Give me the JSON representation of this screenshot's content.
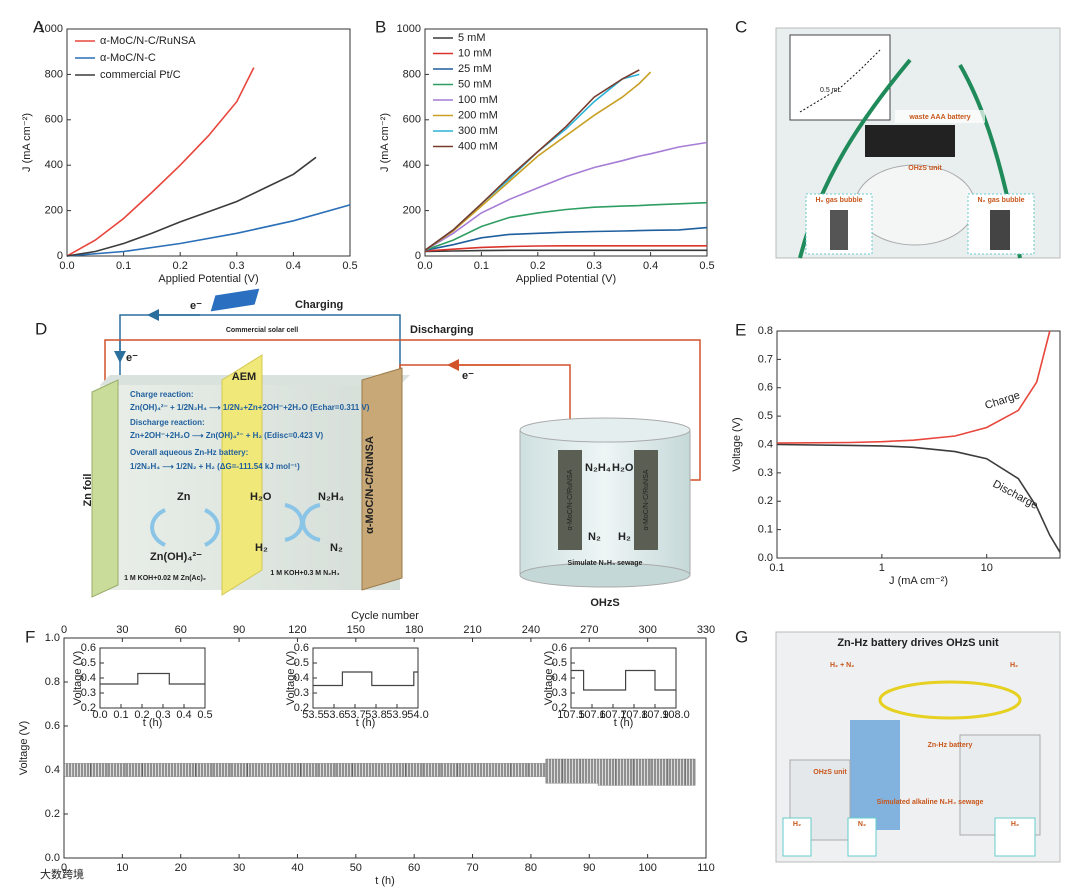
{
  "chart_data": [
    {
      "type": "line",
      "panel": "A",
      "xlabel": "Applied Potential (V)",
      "ylabel": "J (mA cm⁻²)",
      "xlim": [
        0,
        0.5
      ],
      "ylim": [
        0,
        1000
      ],
      "xticks": [
        {
          "value": 0,
          "label": "0.0"
        },
        0.1,
        0.2,
        0.3,
        0.4,
        0.5
      ],
      "yticks": [
        0,
        200,
        400,
        600,
        800,
        1000
      ],
      "legend": "upper left",
      "series": [
        {
          "name": "α-MoC/N-C/RuNSA",
          "color": "#e8463c",
          "x": [
            0,
            0.05,
            0.1,
            0.15,
            0.2,
            0.25,
            0.3,
            0.33
          ],
          "values": [
            0,
            70,
            165,
            280,
            400,
            530,
            680,
            830
          ]
        },
        {
          "name": "α-MoC/N-C",
          "color": "#2a6fb8",
          "x": [
            0,
            0.1,
            0.2,
            0.3,
            0.4,
            0.5
          ],
          "values": [
            0,
            20,
            55,
            100,
            155,
            225
          ]
        },
        {
          "name": "commercial Pt/C",
          "color": "#3c3c3c",
          "x": [
            0,
            0.05,
            0.1,
            0.15,
            0.2,
            0.25,
            0.3,
            0.35,
            0.4,
            0.44
          ],
          "values": [
            0,
            20,
            55,
            100,
            150,
            195,
            240,
            300,
            360,
            435
          ]
        }
      ]
    },
    {
      "type": "line",
      "panel": "B",
      "xlabel": "Applied Potential (V)",
      "ylabel": "J (mA cm⁻²)",
      "xlim": [
        0,
        0.5
      ],
      "ylim": [
        0,
        1000
      ],
      "xticks": [
        {
          "value": 0,
          "label": "0.0"
        },
        0.1,
        0.2,
        0.3,
        0.4,
        0.5
      ],
      "yticks": [
        0,
        200,
        400,
        600,
        800,
        1000
      ],
      "legend": "upper left",
      "x": [
        0,
        0.05,
        0.1,
        0.15,
        0.2,
        0.25,
        0.3,
        0.35,
        0.38,
        0.4,
        0.45,
        0.5
      ],
      "series": [
        {
          "name": "5 mM",
          "color": "#3a3a3a",
          "values": [
            20,
            22,
            24,
            25,
            25,
            25,
            25,
            25,
            25,
            25,
            25,
            25
          ]
        },
        {
          "name": "10 mM",
          "color": "#d9342b",
          "values": [
            22,
            30,
            38,
            42,
            44,
            45,
            45,
            45,
            45,
            45,
            45,
            45
          ]
        },
        {
          "name": "25 mM",
          "color": "#1f5f9e",
          "values": [
            25,
            50,
            80,
            95,
            100,
            105,
            108,
            110,
            112,
            113,
            115,
            125
          ]
        },
        {
          "name": "50 mM",
          "color": "#2f9e62",
          "values": [
            25,
            70,
            130,
            170,
            190,
            205,
            215,
            220,
            222,
            225,
            230,
            235
          ]
        },
        {
          "name": "100 mM",
          "color": "#a67cd6",
          "values": [
            25,
            100,
            190,
            250,
            300,
            350,
            390,
            420,
            440,
            450,
            480,
            500
          ]
        },
        {
          "name": "200 mM",
          "color": "#c9a024",
          "values": [
            25,
            110,
            220,
            330,
            440,
            530,
            620,
            700,
            760,
            810,
            null,
            null
          ]
        },
        {
          "name": "300 mM",
          "color": "#2bb3d6",
          "values": [
            25,
            115,
            230,
            340,
            460,
            560,
            680,
            780,
            800,
            null,
            null,
            null
          ]
        },
        {
          "name": "400 mM",
          "color": "#7a3b2e",
          "values": [
            25,
            115,
            230,
            350,
            460,
            570,
            700,
            780,
            820,
            null,
            null,
            null
          ]
        }
      ]
    },
    {
      "type": "line",
      "panel": "E",
      "xlabel": "J (mA cm⁻²)",
      "ylabel": "Voltage (V)",
      "xscale": "log",
      "xlim": [
        0.1,
        50
      ],
      "ylim": [
        0,
        0.8
      ],
      "xticks": [
        0.1,
        1,
        10
      ],
      "yticks": [
        {
          "value": 0,
          "label": "0.0"
        },
        0.1,
        0.2,
        0.3,
        0.4,
        0.5,
        0.6,
        0.7,
        0.8
      ],
      "legend": "inline",
      "series": [
        {
          "name": "Charge",
          "color": "#e8463c",
          "x": [
            0.1,
            0.5,
            1,
            2,
            5,
            10,
            20,
            30,
            40
          ],
          "values": [
            0.405,
            0.407,
            0.41,
            0.415,
            0.43,
            0.46,
            0.52,
            0.62,
            0.8
          ]
        },
        {
          "name": "Discharge",
          "color": "#3c3c3c",
          "x": [
            0.1,
            0.5,
            1,
            2,
            5,
            10,
            20,
            30,
            40,
            50
          ],
          "values": [
            0.4,
            0.397,
            0.395,
            0.39,
            0.375,
            0.35,
            0.28,
            0.18,
            0.08,
            0.02
          ]
        }
      ]
    },
    {
      "type": "range",
      "panel": "F",
      "xlabel": "t (h)",
      "ylabel": "Voltage (V)",
      "x2label": "Cycle number",
      "xlim": [
        0,
        110
      ],
      "ylim": [
        0,
        1
      ],
      "x2lim": [
        0,
        330
      ],
      "xticks": [
        0,
        10,
        20,
        30,
        40,
        50,
        60,
        70,
        80,
        90,
        100,
        110
      ],
      "x2ticks": [
        0,
        30,
        60,
        90,
        120,
        150,
        180,
        210,
        240,
        270,
        300,
        330
      ],
      "yticks": [
        {
          "value": 0,
          "label": "0.0"
        },
        0.2,
        0.4,
        0.6,
        0.8,
        {
          "value": 1,
          "label": "1.0"
        }
      ],
      "color": "#555555",
      "x": [
        0,
        3,
        6,
        9,
        12,
        15,
        18,
        21,
        24,
        27,
        30,
        33,
        36,
        39,
        42,
        45,
        48,
        51,
        54,
        57,
        60,
        63,
        66,
        69,
        72,
        75,
        78,
        81,
        84,
        87,
        90,
        93,
        96,
        99,
        102,
        105,
        108
      ],
      "high": [
        0.43,
        0.43,
        0.43,
        0.43,
        0.43,
        0.43,
        0.43,
        0.43,
        0.43,
        0.43,
        0.43,
        0.43,
        0.43,
        0.43,
        0.43,
        0.43,
        0.43,
        0.43,
        0.43,
        0.43,
        0.43,
        0.43,
        0.43,
        0.43,
        0.43,
        0.43,
        0.43,
        0.43,
        0.45,
        0.45,
        0.45,
        0.45,
        0.45,
        0.45,
        0.45,
        0.45,
        0.45
      ],
      "low": [
        0.37,
        0.37,
        0.37,
        0.37,
        0.37,
        0.37,
        0.37,
        0.37,
        0.37,
        0.37,
        0.37,
        0.37,
        0.37,
        0.37,
        0.37,
        0.37,
        0.37,
        0.37,
        0.37,
        0.37,
        0.37,
        0.37,
        0.37,
        0.37,
        0.37,
        0.37,
        0.37,
        0.37,
        0.34,
        0.34,
        0.34,
        0.33,
        0.33,
        0.33,
        0.33,
        0.33,
        0.33
      ]
    },
    {
      "type": "line",
      "inset": true,
      "xlabel": "t (h)",
      "ylabel": "Voltage (V)",
      "xlim": [
        0,
        0.5
      ],
      "ylim": [
        0.2,
        0.6
      ],
      "xticks": [
        {
          "value": 0,
          "label": "0.0"
        },
        0.1,
        0.2,
        0.3,
        0.4,
        0.5
      ],
      "yticks": [
        0.2,
        0.3,
        0.4,
        0.5,
        0.6
      ],
      "series": [
        {
          "color": "#444444",
          "x": [
            0,
            0.18,
            0.18,
            0.33,
            0.33,
            0.5
          ],
          "values": [
            0.36,
            0.36,
            0.43,
            0.43,
            0.36,
            0.36
          ]
        }
      ]
    },
    {
      "type": "line",
      "inset": true,
      "xlabel": "t (h)",
      "ylabel": "Voltage (V)",
      "xlim": [
        53.5,
        54
      ],
      "ylim": [
        0.2,
        0.6
      ],
      "xticks": [
        53.5,
        53.6,
        53.7,
        53.8,
        53.9,
        {
          "value": 54,
          "label": "54.0"
        }
      ],
      "yticks": [
        0.2,
        0.3,
        0.4,
        0.5,
        0.6
      ],
      "series": [
        {
          "color": "#444444",
          "x": [
            53.5,
            53.64,
            53.64,
            53.78,
            53.78,
            53.98,
            53.98,
            54
          ],
          "values": [
            0.35,
            0.35,
            0.44,
            0.44,
            0.35,
            0.35,
            0.44,
            0.44
          ]
        }
      ]
    },
    {
      "type": "line",
      "inset": true,
      "xlabel": "t (h)",
      "ylabel": "Voltage (V)",
      "xlim": [
        107.5,
        108
      ],
      "ylim": [
        0.2,
        0.6
      ],
      "xticks": [
        107.5,
        107.6,
        107.7,
        107.8,
        107.9,
        {
          "value": 108,
          "label": "108.0"
        }
      ],
      "yticks": [
        0.2,
        0.3,
        0.4,
        0.5,
        0.6
      ],
      "series": [
        {
          "color": "#444444",
          "x": [
            107.5,
            107.56,
            107.56,
            107.76,
            107.76,
            107.9,
            107.9,
            108
          ],
          "values": [
            0.45,
            0.45,
            0.32,
            0.32,
            0.45,
            0.45,
            0.32,
            0.32
          ]
        }
      ]
    }
  ],
  "panel_c": {
    "label": "C",
    "texts": [
      "waste AAA battery",
      "OHzS unit",
      "H₂ gas bubble",
      "N₂ gas bubble",
      "0.5 mL"
    ]
  },
  "panel_d": {
    "label": "D",
    "charging": "Charging",
    "discharging": "Discharging",
    "solar_cell": "Commercial solar cell",
    "electrons": [
      "e⁻",
      "e⁻",
      "e⁻"
    ],
    "aem": "AEM",
    "zn_foil": "Zn foil",
    "cathode": "α-MoC/N-C/RuNSA",
    "reactions": [
      {
        "title": "Charge reaction:",
        "equation": "Zn(OH)₄²⁻ + 1/2N₂H₄ ⟶ 1/2N₂+Zn+2OH⁻+2H₂O (Echar=0.311 V)"
      },
      {
        "title": "Discharge reaction:",
        "equation": "Zn+2OH⁻+2H₂O ⟶ Zn(OH)₄²⁻ + H₂ (Edisc=0.423 V)"
      },
      {
        "title": "Overall aqueous Zn-Hz battery:",
        "equation": "1/2N₂H₄ ⟶ 1/2N₂ + H₂ (ΔG=-111.54 kJ mol⁻¹)"
      }
    ],
    "anode_species": [
      "Zn",
      "Zn(OH)₄²⁻"
    ],
    "cathode_species": [
      "H₂O",
      "N₂H₄",
      "H₂",
      "N₂"
    ],
    "anolyte": "1 M KOH+0.02 M Zn(Ac)₂",
    "catholyte": "1 M KOH+0.3 M N₂H₄",
    "ohzs": {
      "electrodes": [
        "α-MoC/N-C/RuNSA",
        "α-MoC/N-C/RuNSA"
      ],
      "species": [
        "N₂H₄",
        "H₂O",
        "N₂",
        "H₂"
      ],
      "sewage": "Simulate N₂H₄ sewage",
      "label": "OHzS"
    }
  },
  "panel_g": {
    "label": "G",
    "title": "Zn-Hz battery drives OHzS unit",
    "callouts": [
      "H₂ + N₂",
      "H₂",
      "Zn-Hz battery",
      "OHzS unit",
      "Simulated alkaline N₂H₄ sewage",
      "H₂",
      "N₂",
      "H₂"
    ]
  },
  "watermark": "大数跨境"
}
